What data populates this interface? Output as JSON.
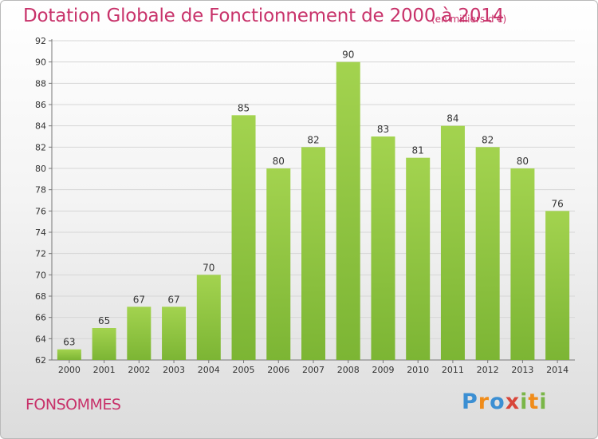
{
  "chart_data": {
    "type": "bar",
    "title": "Dotation Globale de Fonctionnement de 2000 à 2014",
    "subtitle": "(en milliers d'€)",
    "categories": [
      "2000",
      "2001",
      "2002",
      "2003",
      "2004",
      "2005",
      "2006",
      "2007",
      "2008",
      "2009",
      "2010",
      "2011",
      "2012",
      "2013",
      "2014"
    ],
    "values": [
      63,
      65,
      67,
      67,
      70,
      85,
      80,
      82,
      90,
      83,
      81,
      84,
      82,
      80,
      76
    ],
    "ylim": [
      62,
      92
    ],
    "yticks": [
      62,
      64,
      66,
      68,
      70,
      72,
      74,
      76,
      78,
      80,
      82,
      84,
      86,
      88,
      90,
      92
    ],
    "grid": true,
    "bar_color": "#7cb534",
    "bar_color_light": "#a3d34f"
  },
  "footer": {
    "commune": "FONSOMMES",
    "logo_parts": [
      "P",
      "r",
      "o",
      "x",
      "i",
      "t",
      "i"
    ]
  }
}
